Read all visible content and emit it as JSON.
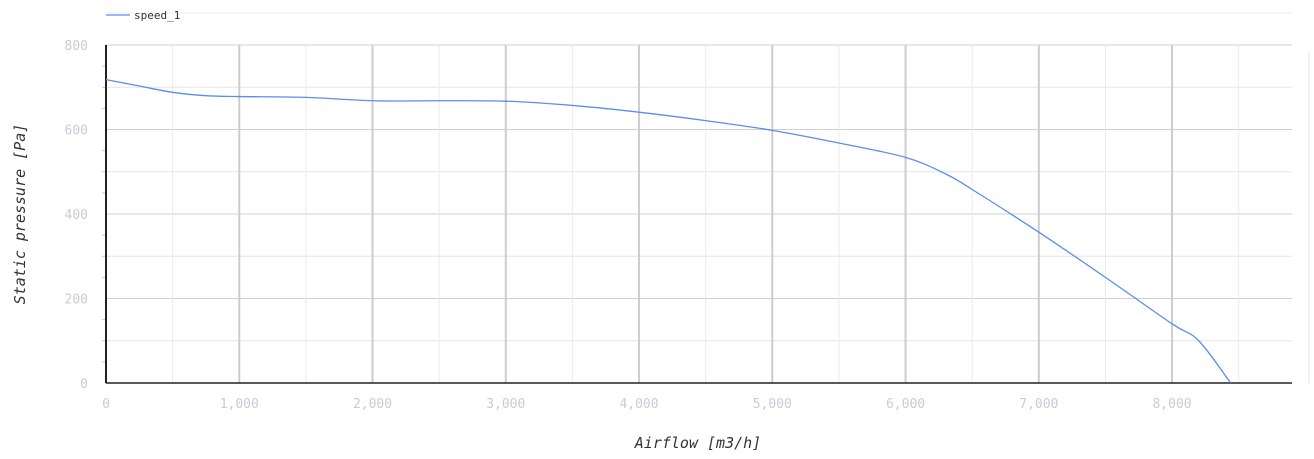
{
  "chart_data": {
    "type": "line",
    "title": "",
    "xlabel": "Airflow [m3/h]",
    "ylabel": "Static pressure [Pa]",
    "xlim": [
      0,
      8900
    ],
    "ylim": [
      0,
      800
    ],
    "x_ticks": [
      {
        "value": 0,
        "label": "0"
      },
      {
        "value": 1000,
        "label": "1,000"
      },
      {
        "value": 2000,
        "label": "2,000"
      },
      {
        "value": 3000,
        "label": "3,000"
      },
      {
        "value": 4000,
        "label": "4,000"
      },
      {
        "value": 5000,
        "label": "5,000"
      },
      {
        "value": 6000,
        "label": "6,000"
      },
      {
        "value": 7000,
        "label": "7,000"
      },
      {
        "value": 8000,
        "label": "8,000"
      }
    ],
    "y_ticks": [
      {
        "value": 0,
        "label": "0"
      },
      {
        "value": 200,
        "label": "200"
      },
      {
        "value": 400,
        "label": "400"
      },
      {
        "value": 600,
        "label": "600"
      },
      {
        "value": 800,
        "label": "800"
      }
    ],
    "grid": true,
    "legend": {
      "position": "top-left"
    },
    "series": [
      {
        "name": "speed_1",
        "color": "#5b8def",
        "points": [
          [
            0,
            718
          ],
          [
            250,
            703
          ],
          [
            500,
            688
          ],
          [
            750,
            680
          ],
          [
            1000,
            678
          ],
          [
            1500,
            676
          ],
          [
            2000,
            668
          ],
          [
            2500,
            668
          ],
          [
            3000,
            667
          ],
          [
            3500,
            657
          ],
          [
            4000,
            641
          ],
          [
            4500,
            621
          ],
          [
            5000,
            598
          ],
          [
            5500,
            568
          ],
          [
            6000,
            534
          ],
          [
            6300,
            495
          ],
          [
            6500,
            458
          ],
          [
            7000,
            357
          ],
          [
            7500,
            250
          ],
          [
            8000,
            140
          ],
          [
            8200,
            100
          ],
          [
            8440,
            0
          ]
        ]
      }
    ]
  }
}
